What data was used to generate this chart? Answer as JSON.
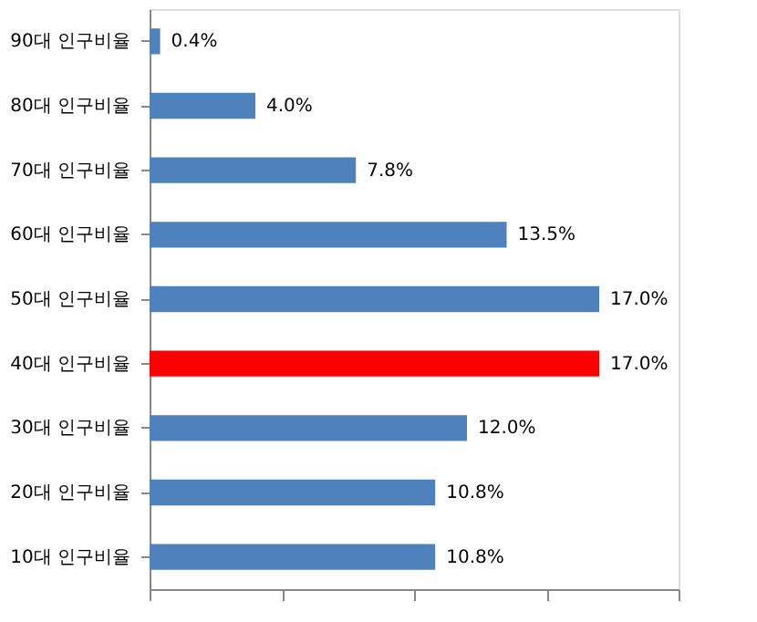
{
  "chart_data": {
    "type": "bar",
    "orientation": "horizontal",
    "categories": [
      "90대 인구비율",
      "80대 인구비율",
      "70대 인구비율",
      "60대 인구비율",
      "50대 인구비율",
      "40대 인구비율",
      "30대 인구비율",
      "20대 인구비율",
      "10대 인구비율"
    ],
    "values": [
      0.4,
      4.0,
      7.8,
      13.5,
      17.0,
      17.0,
      12.0,
      10.8,
      10.8
    ],
    "colors": [
      "#4f81bd",
      "#4f81bd",
      "#4f81bd",
      "#4f81bd",
      "#4f81bd",
      "#ff0000",
      "#4f81bd",
      "#4f81bd",
      "#4f81bd"
    ],
    "value_labels": [
      "0.4%",
      "4.0%",
      "7.8%",
      "13.5%",
      "17.0%",
      "17.0%",
      "12.0%",
      "10.8%",
      "10.8%"
    ],
    "xlim": [
      0,
      20
    ],
    "xticks": [
      {
        "value": 0,
        "label": null
      },
      {
        "value": 5,
        "label": null
      },
      {
        "value": 10,
        "label": null
      },
      {
        "value": 15,
        "label": null
      },
      {
        "value": 20,
        "label": null
      }
    ],
    "tick_labels": "y",
    "grid": false
  }
}
